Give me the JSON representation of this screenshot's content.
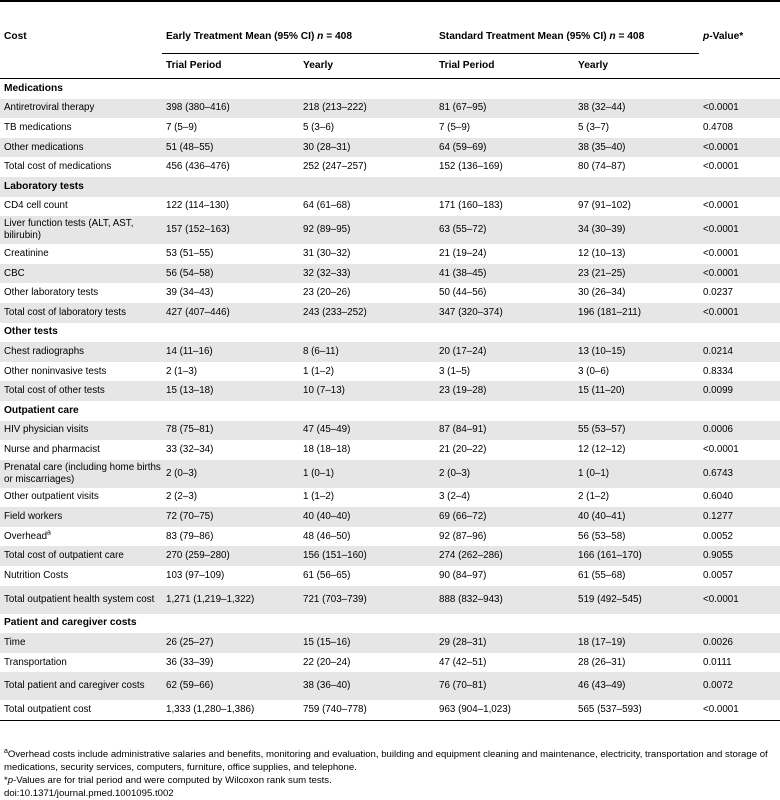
{
  "header": {
    "cost": "Cost",
    "early_group_prefix": "Early Treatment Mean (95% CI) ",
    "early_group_n": "n",
    "early_group_suffix": " = 408",
    "standard_group_prefix": "Standard Treatment Mean (95% CI) ",
    "standard_group_n": "n",
    "standard_group_suffix": " = 408",
    "pvalue_p": "p",
    "pvalue_rest": "-Value*",
    "trial_period": "Trial Period",
    "yearly": "Yearly"
  },
  "sections": {
    "medications": "Medications",
    "lab_tests": "Laboratory tests",
    "other_tests": "Other tests",
    "outpatient": "Outpatient care",
    "patient": "Patient and caregiver costs"
  },
  "rows": {
    "art": [
      "Antiretroviral therapy",
      "398 (380–416)",
      "218 (213–222)",
      "81 (67–95)",
      "38 (32–44)",
      "<0.0001"
    ],
    "tb": [
      "TB medications",
      "7 (5–9)",
      "5 (3–6)",
      "7 (5–9)",
      "5 (3–7)",
      "0.4708"
    ],
    "othermed": [
      "Other medications",
      "51 (48–55)",
      "30 (28–31)",
      "64 (59–69)",
      "38 (35–40)",
      "<0.0001"
    ],
    "totmed": [
      "Total cost of medications",
      "456 (436–476)",
      "252 (247–257)",
      "152 (136–169)",
      "80 (74–87)",
      "<0.0001"
    ],
    "cd4": [
      "CD4 cell count",
      "122 (114–130)",
      "64 (61–68)",
      "171 (160–183)",
      "97 (91–102)",
      "<0.0001"
    ],
    "lft": [
      "Liver function tests (ALT, AST, bilirubin)",
      "157 (152–163)",
      "92 (89–95)",
      "63 (55–72)",
      "34 (30–39)",
      "<0.0001"
    ],
    "creat": [
      "Creatinine",
      "53 (51–55)",
      "31 (30–32)",
      "21 (19–24)",
      "12 (10–13)",
      "<0.0001"
    ],
    "cbc": [
      "CBC",
      "56 (54–58)",
      "32 (32–33)",
      "41 (38–45)",
      "23 (21–25)",
      "<0.0001"
    ],
    "otherlab": [
      "Other laboratory tests",
      "39 (34–43)",
      "23 (20–26)",
      "50 (44–56)",
      "30 (26–34)",
      "0.0237"
    ],
    "totlab": [
      "Total cost of laboratory tests",
      "427 (407–446)",
      "243 (233–252)",
      "347 (320–374)",
      "196 (181–211)",
      "<0.0001"
    ],
    "chest": [
      "Chest radiographs",
      "14 (11–16)",
      "8 (6–11)",
      "20 (17–24)",
      "13 (10–15)",
      "0.0214"
    ],
    "noninv": [
      "Other noninvasive tests",
      "2 (1–3)",
      "1 (1–2)",
      "3 (1–5)",
      "3 (0–6)",
      "0.8334"
    ],
    "totother": [
      "Total cost of other tests",
      "15 (13–18)",
      "10 (7–13)",
      "23 (19–28)",
      "15 (11–20)",
      "0.0099"
    ],
    "hiv": [
      "HIV physician visits",
      "78 (75–81)",
      "47 (45–49)",
      "87 (84–91)",
      "55 (53–57)",
      "0.0006"
    ],
    "nurse": [
      "Nurse and pharmacist",
      "33 (32–34)",
      "18 (18–18)",
      "21 (20–22)",
      "12 (12–12)",
      "<0.0001"
    ],
    "prenatal": [
      "Prenatal care (including home births or miscarriages)",
      "2 (0–3)",
      "1 (0–1)",
      "2 (0–3)",
      "1 (0–1)",
      "0.6743"
    ],
    "otherout": [
      "Other outpatient visits",
      "2 (2–3)",
      "1 (1–2)",
      "3 (2–4)",
      "2 (1–2)",
      "0.6040"
    ],
    "field": [
      "Field workers",
      "72 (70–75)",
      "40 (40–40)",
      "69 (66–72)",
      "40 (40–41)",
      "0.1277"
    ],
    "overhead": [
      "Overhead",
      "83 (79–86)",
      "48 (46–50)",
      "92 (87–96)",
      "56 (53–58)",
      "0.0052"
    ],
    "overhead_sup": "a",
    "totout": [
      "Total cost of outpatient care",
      "270 (259–280)",
      "156 (151–160)",
      "274 (262–286)",
      "166 (161–170)",
      "0.9055"
    ],
    "nutrition": [
      "Nutrition Costs",
      "103 (97–109)",
      "61 (56–65)",
      "90 (84–97)",
      "61 (55–68)",
      "0.0057"
    ],
    "tothealth": [
      "Total outpatient health system cost",
      "1,271 (1,219–1,322)",
      "721 (703–739)",
      "888 (832–943)",
      "519 (492–545)",
      "<0.0001"
    ],
    "time": [
      "Time",
      "26 (25–27)",
      "15 (15–16)",
      "29 (28–31)",
      "18 (17–19)",
      "0.0026"
    ],
    "transport": [
      "Transportation",
      "36 (33–39)",
      "22 (20–24)",
      "47 (42–51)",
      "28 (26–31)",
      "0.0111"
    ],
    "totpatient": [
      "Total patient and caregiver costs",
      "62 (59–66)",
      "38 (36–40)",
      "76 (70–81)",
      "46 (43–49)",
      "0.0072"
    ],
    "totoutpatient": [
      "Total outpatient cost",
      "1,333 (1,280–1,386)",
      "759 (740–778)",
      "963 (904–1,023)",
      "565 (537–593)",
      "<0.0001"
    ]
  },
  "footnotes": {
    "a_sup": "a",
    "a_text": "Overhead costs include administrative salaries and benefits, monitoring and evaluation, building and equipment cleaning and maintenance, electricity, transportation and storage of medications, security services, computers, furniture, office supplies, and telephone.",
    "star_prefix": "*",
    "star_p": "p",
    "star_text": "-Values are for trial period and were computed by Wilcoxon rank sum tests.",
    "doi": "doi:10.1371/journal.pmed.1001095.t002"
  }
}
